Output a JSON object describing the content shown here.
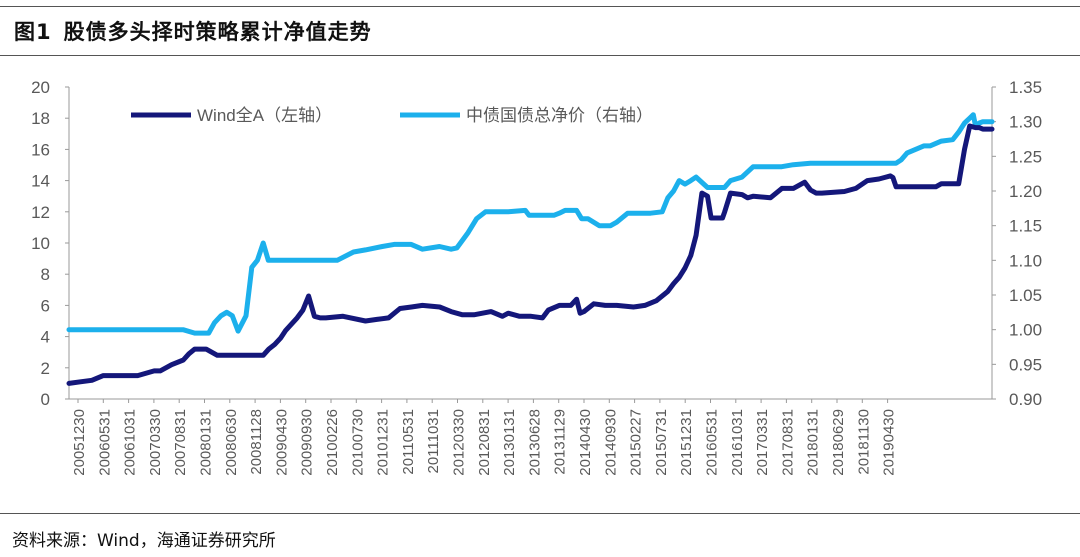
{
  "title_number": "图1",
  "title_text": "股债多头择时策略累计净值走势",
  "source": "资料来源：Wind，海通证券研究所",
  "chart_data": {
    "type": "line",
    "title": "股债多头择时策略累计净值走势",
    "left_axis": {
      "min": 0,
      "max": 20,
      "step": 2,
      "ticks": [
        "0",
        "2",
        "4",
        "6",
        "8",
        "10",
        "12",
        "14",
        "16",
        "18",
        "20"
      ]
    },
    "right_axis": {
      "min": 0.9,
      "max": 1.35,
      "step": 0.05,
      "ticks": [
        "0.90",
        "0.95",
        "1.00",
        "1.05",
        "1.10",
        "1.15",
        "1.20",
        "1.25",
        "1.30",
        "1.35"
      ]
    },
    "x_tick_labels": [
      "20051230",
      "20060531",
      "20061031",
      "20070330",
      "20070831",
      "20080131",
      "20080630",
      "20081128",
      "20090430",
      "20090930",
      "20100226",
      "20100730",
      "20101231",
      "20110531",
      "20111031",
      "20120330",
      "20120831",
      "20130131",
      "20130628",
      "20131129",
      "20140430",
      "20140930",
      "20150227",
      "20150731",
      "20151231",
      "20160531",
      "20161031",
      "20170331",
      "20170831",
      "20180131",
      "20180629",
      "20181130",
      "20190430"
    ],
    "x_start": "2005-12-30",
    "x_end": "2019-06-28",
    "grid": false,
    "legend_position": "top-left",
    "series": [
      {
        "name": "Wind全A（左轴）",
        "axis": "left",
        "color": "#14177a",
        "dates": [
          "2005-12-30",
          "2006-03-01",
          "2006-05-01",
          "2006-07-01",
          "2006-11-01",
          "2007-01-01",
          "2007-03-30",
          "2007-05-01",
          "2007-07-01",
          "2007-09-01",
          "2007-10-01",
          "2007-11-01",
          "2007-12-01",
          "2008-01-01",
          "2008-03-01",
          "2008-06-01",
          "2008-09-01",
          "2008-11-01",
          "2008-12-01",
          "2009-01-01",
          "2009-02-01",
          "2009-03-01",
          "2009-04-01",
          "2009-05-01",
          "2009-06-01",
          "2009-07-01",
          "2009-08-01",
          "2009-09-01",
          "2009-10-01",
          "2010-01-01",
          "2010-05-01",
          "2010-07-01",
          "2010-09-01",
          "2010-11-01",
          "2011-01-01",
          "2011-03-01",
          "2011-06-01",
          "2011-08-01",
          "2011-10-01",
          "2011-12-01",
          "2012-03-01",
          "2012-05-01",
          "2012-06-01",
          "2012-08-01",
          "2012-10-01",
          "2012-12-01",
          "2013-01-01",
          "2013-03-01",
          "2013-05-01",
          "2013-06-01",
          "2013-06-20",
          "2013-07-10",
          "2013-09-01",
          "2013-11-01",
          "2014-01-01",
          "2014-04-01",
          "2014-06-01",
          "2014-08-01",
          "2014-10-01",
          "2014-11-01",
          "2014-12-01",
          "2015-01-01",
          "2015-02-01",
          "2015-03-01",
          "2015-04-01",
          "2015-05-01",
          "2015-05-20",
          "2015-06-10",
          "2015-07-01",
          "2015-07-20",
          "2015-08-01",
          "2015-09-01",
          "2015-11-01",
          "2015-12-01",
          "2016-01-01",
          "2016-04-01",
          "2016-06-01",
          "2016-08-01",
          "2016-10-01",
          "2016-11-01",
          "2016-12-01",
          "2017-01-01",
          "2017-05-01",
          "2017-07-01",
          "2017-09-01",
          "2017-11-01",
          "2017-12-01",
          "2018-01-01",
          "2018-01-15",
          "2018-02-01",
          "2018-06-01",
          "2018-09-01",
          "2018-10-01",
          "2019-01-01",
          "2019-02-01",
          "2019-03-01",
          "2019-04-01",
          "2019-04-20",
          "2019-05-10",
          "2019-06-28"
        ],
        "values": [
          1.0,
          1.1,
          1.2,
          1.5,
          1.5,
          1.5,
          1.8,
          1.8,
          2.2,
          2.5,
          2.9,
          3.2,
          3.2,
          3.2,
          2.8,
          2.8,
          2.8,
          2.8,
          3.2,
          3.5,
          3.9,
          4.4,
          4.8,
          5.2,
          5.7,
          6.6,
          5.3,
          5.2,
          5.2,
          5.3,
          5.0,
          5.1,
          5.2,
          5.8,
          5.9,
          6.0,
          5.9,
          5.6,
          5.4,
          5.4,
          5.6,
          5.3,
          5.5,
          5.3,
          5.3,
          5.2,
          5.7,
          6.0,
          6.0,
          6.4,
          5.5,
          5.6,
          6.1,
          6.0,
          6.0,
          5.9,
          6.0,
          6.3,
          6.9,
          7.4,
          7.8,
          8.4,
          9.2,
          10.5,
          13.2,
          13.0,
          11.6,
          11.6,
          11.6,
          11.6,
          12.0,
          13.2,
          13.1,
          12.9,
          13.0,
          12.9,
          13.5,
          13.5,
          13.9,
          13.4,
          13.2,
          13.2,
          13.3,
          13.5,
          14.0,
          14.1,
          14.2,
          14.3,
          14.2,
          13.6,
          13.6,
          13.6,
          13.8,
          13.8,
          16.0,
          17.5,
          17.4,
          17.4,
          17.3,
          17.3
        ]
      },
      {
        "name": "中债国债总净价（右轴）",
        "axis": "right",
        "color": "#1cb0ec",
        "dates": [
          "2005-12-30",
          "2007-08-31",
          "2007-11-01",
          "2008-01-15",
          "2008-02-15",
          "2008-03-20",
          "2008-04-20",
          "2008-05-20",
          "2008-06-20",
          "2008-08-01",
          "2008-09-01",
          "2008-10-01",
          "2008-11-01",
          "2008-11-28",
          "2008-12-15",
          "2009-01-15",
          "2009-09-30",
          "2009-12-01",
          "2010-02-26",
          "2010-05-01",
          "2010-07-30",
          "2010-10-01",
          "2010-12-31",
          "2011-03-01",
          "2011-05-31",
          "2011-08-01",
          "2011-09-01",
          "2011-10-31",
          "2011-12-15",
          "2012-02-01",
          "2012-03-30",
          "2012-06-01",
          "2012-08-31",
          "2012-09-20",
          "2012-12-01",
          "2013-01-31",
          "2013-03-01",
          "2013-04-01",
          "2013-06-01",
          "2013-06-28",
          "2013-08-01",
          "2013-10-01",
          "2013-11-29",
          "2014-01-01",
          "2014-03-01",
          "2014-05-01",
          "2014-07-01",
          "2014-09-01",
          "2014-10-01",
          "2014-11-01",
          "2014-12-01",
          "2015-01-01",
          "2015-02-01",
          "2015-03-01",
          "2015-05-01",
          "2015-07-31",
          "2015-09-01",
          "2015-11-01",
          "2015-12-31",
          "2016-05-31",
          "2016-08-01",
          "2016-10-31",
          "2017-03-31",
          "2017-08-31",
          "2017-12-01",
          "2018-01-31",
          "2018-03-01",
          "2018-04-01",
          "2018-06-29",
          "2018-08-01",
          "2018-10-01",
          "2018-11-30",
          "2019-01-01",
          "2019-02-01",
          "2019-03-01",
          "2019-03-20",
          "2019-04-01",
          "2019-04-20",
          "2019-05-10",
          "2019-06-28"
        ],
        "values": [
          1.0,
          1.0,
          0.995,
          0.995,
          1.01,
          1.02,
          1.025,
          1.02,
          0.998,
          1.02,
          1.09,
          1.1,
          1.125,
          1.1,
          1.1,
          1.1,
          1.1,
          1.1,
          1.112,
          1.115,
          1.12,
          1.123,
          1.123,
          1.116,
          1.12,
          1.116,
          1.118,
          1.14,
          1.16,
          1.17,
          1.17,
          1.17,
          1.172,
          1.165,
          1.165,
          1.165,
          1.168,
          1.172,
          1.172,
          1.16,
          1.16,
          1.15,
          1.15,
          1.155,
          1.168,
          1.168,
          1.168,
          1.17,
          1.19,
          1.2,
          1.215,
          1.21,
          1.215,
          1.22,
          1.205,
          1.205,
          1.215,
          1.22,
          1.235,
          1.235,
          1.238,
          1.24,
          1.24,
          1.24,
          1.24,
          1.24,
          1.245,
          1.255,
          1.265,
          1.265,
          1.272,
          1.274,
          1.285,
          1.298,
          1.305,
          1.31,
          1.294,
          1.298,
          1.3,
          1.3
        ]
      }
    ]
  }
}
